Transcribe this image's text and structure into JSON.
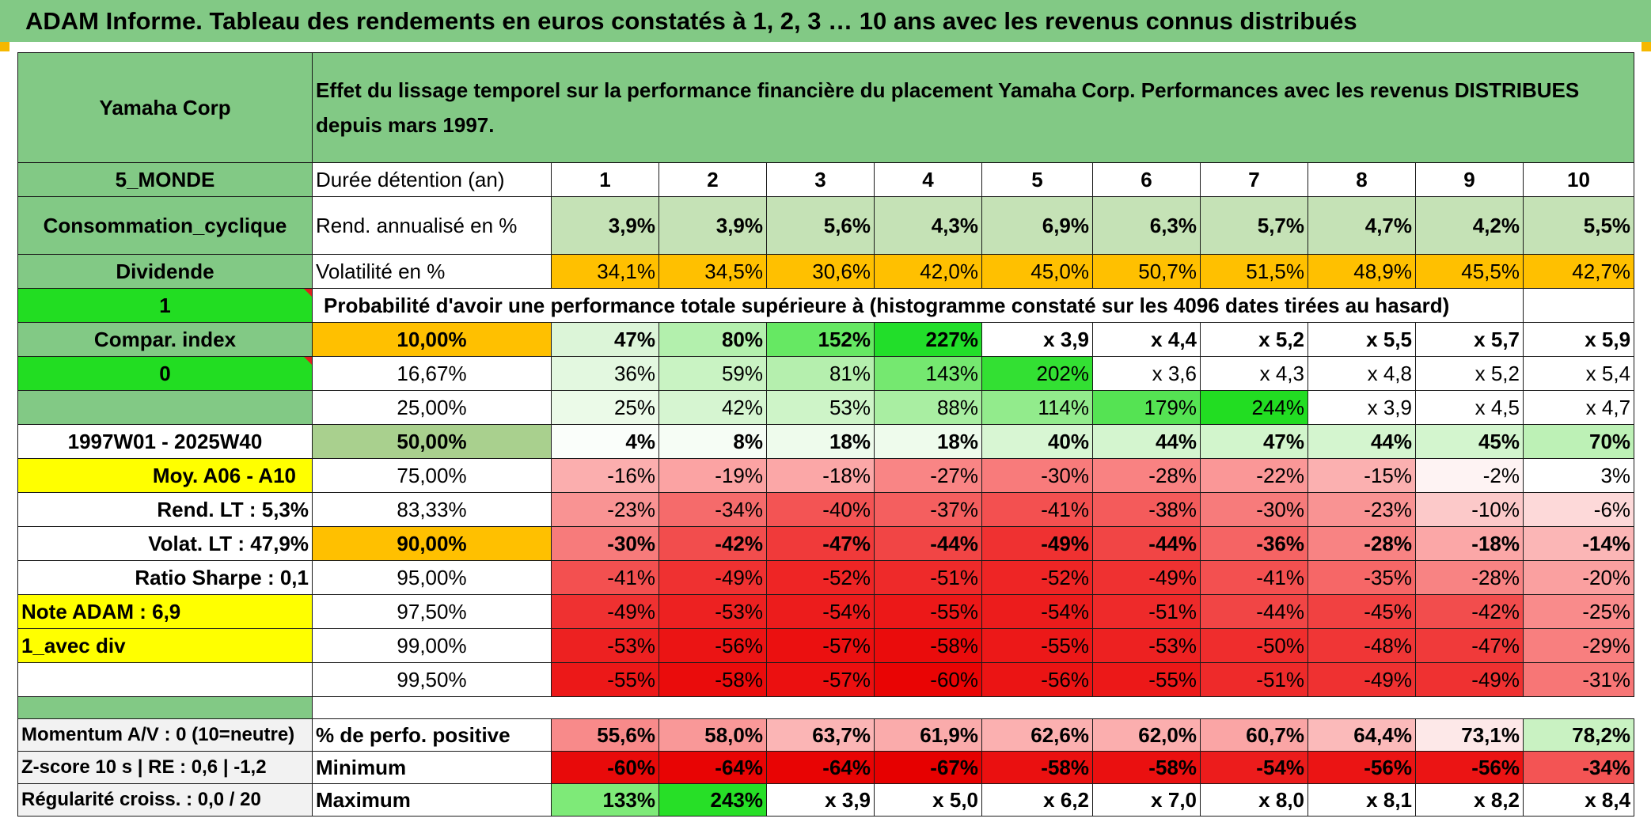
{
  "title": "ADAM Informe. Tableau des rendements en euros constatés à 1, 2, 3 … 10 ans avec les revenus connus distribués",
  "header": {
    "company": "Yamaha Corp",
    "description": "Effet du lissage temporel sur la performance financière du placement Yamaha Corp. Performances avec les revenus DISTRIBUES depuis mars 1997."
  },
  "left_panel": {
    "zone": "5_MONDE",
    "sector": "Consommation_cyclique",
    "income": "Dividende",
    "flag1": "1",
    "compar": "Compar. index",
    "flag0": "0",
    "period": "1997W01 - 2025W40",
    "moy": "Moy. A06 - A10",
    "rend_lt": "Rend. LT :   5,3%",
    "volat_lt": "Volat. LT :   47,9%",
    "sharpe": "Ratio Sharpe :    0,1",
    "note": "Note ADAM : 6,9",
    "avec_div": "1_avec div"
  },
  "durations": {
    "label": "Durée détention (an)",
    "values": [
      "1",
      "2",
      "3",
      "4",
      "5",
      "6",
      "7",
      "8",
      "9",
      "10"
    ]
  },
  "rendement": {
    "label": "Rend. annualisé en %",
    "values": [
      "3,9%",
      "3,9%",
      "5,6%",
      "4,3%",
      "6,9%",
      "6,3%",
      "5,7%",
      "4,7%",
      "4,2%",
      "5,5%"
    ]
  },
  "volatilite": {
    "label": "Volatilité en %",
    "values": [
      "34,1%",
      "34,5%",
      "30,6%",
      "42,0%",
      "45,0%",
      "50,7%",
      "51,5%",
      "48,9%",
      "45,5%",
      "42,7%"
    ]
  },
  "probability_title": "Probabilité d'avoir une performance totale supérieure à (histogramme constaté sur les 4096 dates tirées au hasard)",
  "probability_rows": [
    {
      "pct": "10,00%",
      "values": [
        "47%",
        "80%",
        "152%",
        "227%",
        "x 3,9",
        "x 4,4",
        "x 5,2",
        "x 5,5",
        "x 5,7",
        "x 5,9"
      ],
      "colors": [
        "#dcf5d8",
        "#b3f0ad",
        "#66e863",
        "#22de2a",
        "#ffffff",
        "#ffffff",
        "#ffffff",
        "#ffffff",
        "#ffffff",
        "#ffffff"
      ]
    },
    {
      "pct": "16,67%",
      "values": [
        "36%",
        "59%",
        "81%",
        "143%",
        "202%",
        "x 3,6",
        "x 4,3",
        "x 4,8",
        "x 5,2",
        "x 5,4"
      ],
      "colors": [
        "#e3f8e0",
        "#c9f3c3",
        "#b5efae",
        "#75e870",
        "#33e033",
        "#ffffff",
        "#ffffff",
        "#ffffff",
        "#ffffff",
        "#ffffff"
      ]
    },
    {
      "pct": "25,00%",
      "values": [
        "25%",
        "42%",
        "53%",
        "88%",
        "114%",
        "179%",
        "244%",
        "x 3,9",
        "x 4,5",
        "x 4,7"
      ],
      "colors": [
        "#ebfae8",
        "#d6f5d1",
        "#cef4c8",
        "#a9eea2",
        "#92eb8c",
        "#55e353",
        "#22dd22",
        "#ffffff",
        "#ffffff",
        "#ffffff"
      ]
    },
    {
      "pct": "50,00%",
      "values": [
        "4%",
        "8%",
        "18%",
        "18%",
        "40%",
        "44%",
        "47%",
        "44%",
        "45%",
        "70%"
      ],
      "colors": [
        "#fafefa",
        "#f6fdf5",
        "#eefbec",
        "#eefbec",
        "#d8f6d3",
        "#d4f5cf",
        "#d2f5cc",
        "#d4f5cf",
        "#d3f5ce",
        "#bdf1b6"
      ]
    },
    {
      "pct": "75,00%",
      "values": [
        "-16%",
        "-19%",
        "-18%",
        "-27%",
        "-30%",
        "-28%",
        "-22%",
        "-15%",
        "-2%",
        "3%"
      ],
      "colors": [
        "#fbaeae",
        "#fba3a3",
        "#fba7a7",
        "#f98585",
        "#f87b7b",
        "#f98282",
        "#fa9797",
        "#fbb0b0",
        "#fef3f3",
        "#ffffff"
      ]
    },
    {
      "pct": "83,33%",
      "values": [
        "-23%",
        "-34%",
        "-40%",
        "-37%",
        "-41%",
        "-38%",
        "-30%",
        "-23%",
        "-10%",
        "-6%"
      ],
      "colors": [
        "#f99393",
        "#f56b6b",
        "#f35454",
        "#f45f5f",
        "#f35050",
        "#f45b5b",
        "#f77b7b",
        "#f99393",
        "#fcc9c9",
        "#fdd9d9"
      ]
    },
    {
      "pct": "90,00%",
      "values": [
        "-30%",
        "-42%",
        "-47%",
        "-44%",
        "-49%",
        "-44%",
        "-36%",
        "-28%",
        "-18%",
        "-14%"
      ],
      "colors": [
        "#f77b7b",
        "#f24d4d",
        "#f03a3a",
        "#f14545",
        "#ef3131",
        "#f14545",
        "#f56464",
        "#f88383",
        "#fba7a7",
        "#fbb6b6"
      ]
    },
    {
      "pct": "95,00%",
      "values": [
        "-41%",
        "-49%",
        "-52%",
        "-51%",
        "-52%",
        "-49%",
        "-41%",
        "-35%",
        "-28%",
        "-20%"
      ],
      "colors": [
        "#f35050",
        "#ef3131",
        "#ee2525",
        "#ee2a2a",
        "#ee2525",
        "#ef3131",
        "#f35050",
        "#f66767",
        "#f88383",
        "#faa0a0"
      ]
    },
    {
      "pct": "97,50%",
      "values": [
        "-49%",
        "-53%",
        "-54%",
        "-55%",
        "-54%",
        "-51%",
        "-44%",
        "-45%",
        "-42%",
        "-25%"
      ],
      "colors": [
        "#ef3131",
        "#ed2121",
        "#ec1c1c",
        "#ec1818",
        "#ec1c1c",
        "#ee2a2a",
        "#f14545",
        "#f14141",
        "#f24d4d",
        "#f98b8b"
      ]
    },
    {
      "pct": "99,00%",
      "values": [
        "-53%",
        "-56%",
        "-57%",
        "-58%",
        "-55%",
        "-53%",
        "-50%",
        "-48%",
        "-47%",
        "-29%"
      ],
      "colors": [
        "#ed2121",
        "#eb1414",
        "#eb1010",
        "#ea0c0c",
        "#ec1818",
        "#ed2121",
        "#ef2d2d",
        "#f03636",
        "#f03a3a",
        "#f87f7f"
      ]
    },
    {
      "pct": "99,50%",
      "values": [
        "-55%",
        "-58%",
        "-57%",
        "-60%",
        "-56%",
        "-55%",
        "-51%",
        "-49%",
        "-49%",
        "-31%"
      ],
      "colors": [
        "#ec1818",
        "#ea0c0c",
        "#eb1010",
        "#e90404",
        "#eb1414",
        "#ec1818",
        "#ee2a2a",
        "#ef3131",
        "#ef3131",
        "#f77676"
      ]
    }
  ],
  "bottom": {
    "momentum": "Momentum A/V : 0 (10=neutre)",
    "zscore": "Z-score 10 s | RE : 0,6 | -1,2",
    "regularite": "Régularité croiss. : 0,0 / 20",
    "pos_label": "% de perfo. positive",
    "pos_values": [
      "55,6%",
      "58,0%",
      "63,7%",
      "61,9%",
      "62,6%",
      "62,0%",
      "60,7%",
      "64,4%",
      "73,1%",
      "78,2%"
    ],
    "pos_colors": [
      "#f88a8a",
      "#f99898",
      "#fbb5b5",
      "#faabab",
      "#fbb0b0",
      "#fbaeae",
      "#faa5a5",
      "#fbbaba",
      "#fde8e8",
      "#c9f2c2"
    ],
    "min_label": "Minimum",
    "min_values": [
      "-60%",
      "-64%",
      "-64%",
      "-67%",
      "-58%",
      "-58%",
      "-54%",
      "-56%",
      "-56%",
      "-34%"
    ],
    "min_colors": [
      "#e80a0a",
      "#e80404",
      "#e80404",
      "#e60000",
      "#ea1010",
      "#ea1010",
      "#ec1c1c",
      "#eb1414",
      "#eb1414",
      "#f35454"
    ],
    "max_label": "Maximum",
    "max_values": [
      "133%",
      "243%",
      "x 3,9",
      "x 5,0",
      "x 6,2",
      "x 7,0",
      "x 8,0",
      "x 8,1",
      "x 8,2",
      "x 8,4"
    ],
    "max_colors": [
      "#7eea78",
      "#27df27",
      "#ffffff",
      "#ffffff",
      "#ffffff",
      "#ffffff",
      "#ffffff",
      "#ffffff",
      "#ffffff",
      "#ffffff"
    ]
  },
  "colors": {
    "green_header": "#82c985",
    "light_green": "#c5e2b6",
    "orange": "#ffc000",
    "yellow": "#ffff00",
    "bright_green": "#22dd22",
    "red_text": "#d7191c",
    "mid_green": "#a9d08e",
    "gray": "#f2f2f2"
  }
}
